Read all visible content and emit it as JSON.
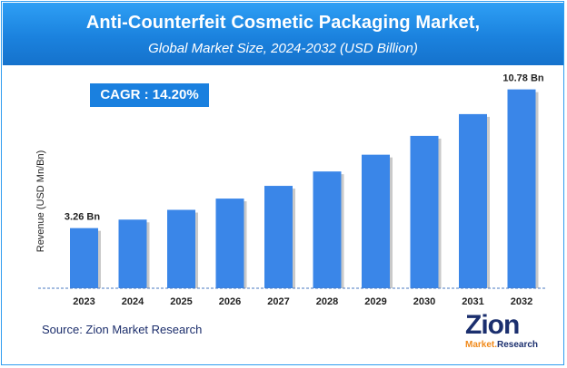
{
  "header": {
    "title": "Anti-Counterfeit Cosmetic Packaging Market,",
    "subtitle": "Global Market Size, 2024-2032 (USD Billion)"
  },
  "cagr_label": "CAGR :  14.20%",
  "source": "Source: Zion Market Research",
  "logo": {
    "main": "Zion",
    "sub_left": "Market.",
    "sub_right": "Research"
  },
  "colors": {
    "header": "#1b82de",
    "bar": "#3a86e8",
    "axis": "#4a78c0",
    "logo": "#1b2f6e",
    "logo_accent": "#f08a1c"
  },
  "chart_data": {
    "type": "bar",
    "title": "Anti-Counterfeit Cosmetic Packaging Market, Global Market Size, 2024-2032 (USD Billion)",
    "ylabel": "Revenue (USD Mn/Bn)",
    "xlabel": "",
    "categories": [
      "2023",
      "2024",
      "2025",
      "2026",
      "2027",
      "2028",
      "2029",
      "2030",
      "2031",
      "2032"
    ],
    "values": [
      3.26,
      3.72,
      4.25,
      4.86,
      5.55,
      6.33,
      7.24,
      8.26,
      9.44,
      10.78
    ],
    "data_labels": {
      "0": "3.26 Bn",
      "9": "10.78 Bn"
    },
    "ylim": [
      0,
      11.4
    ],
    "grid": false
  }
}
